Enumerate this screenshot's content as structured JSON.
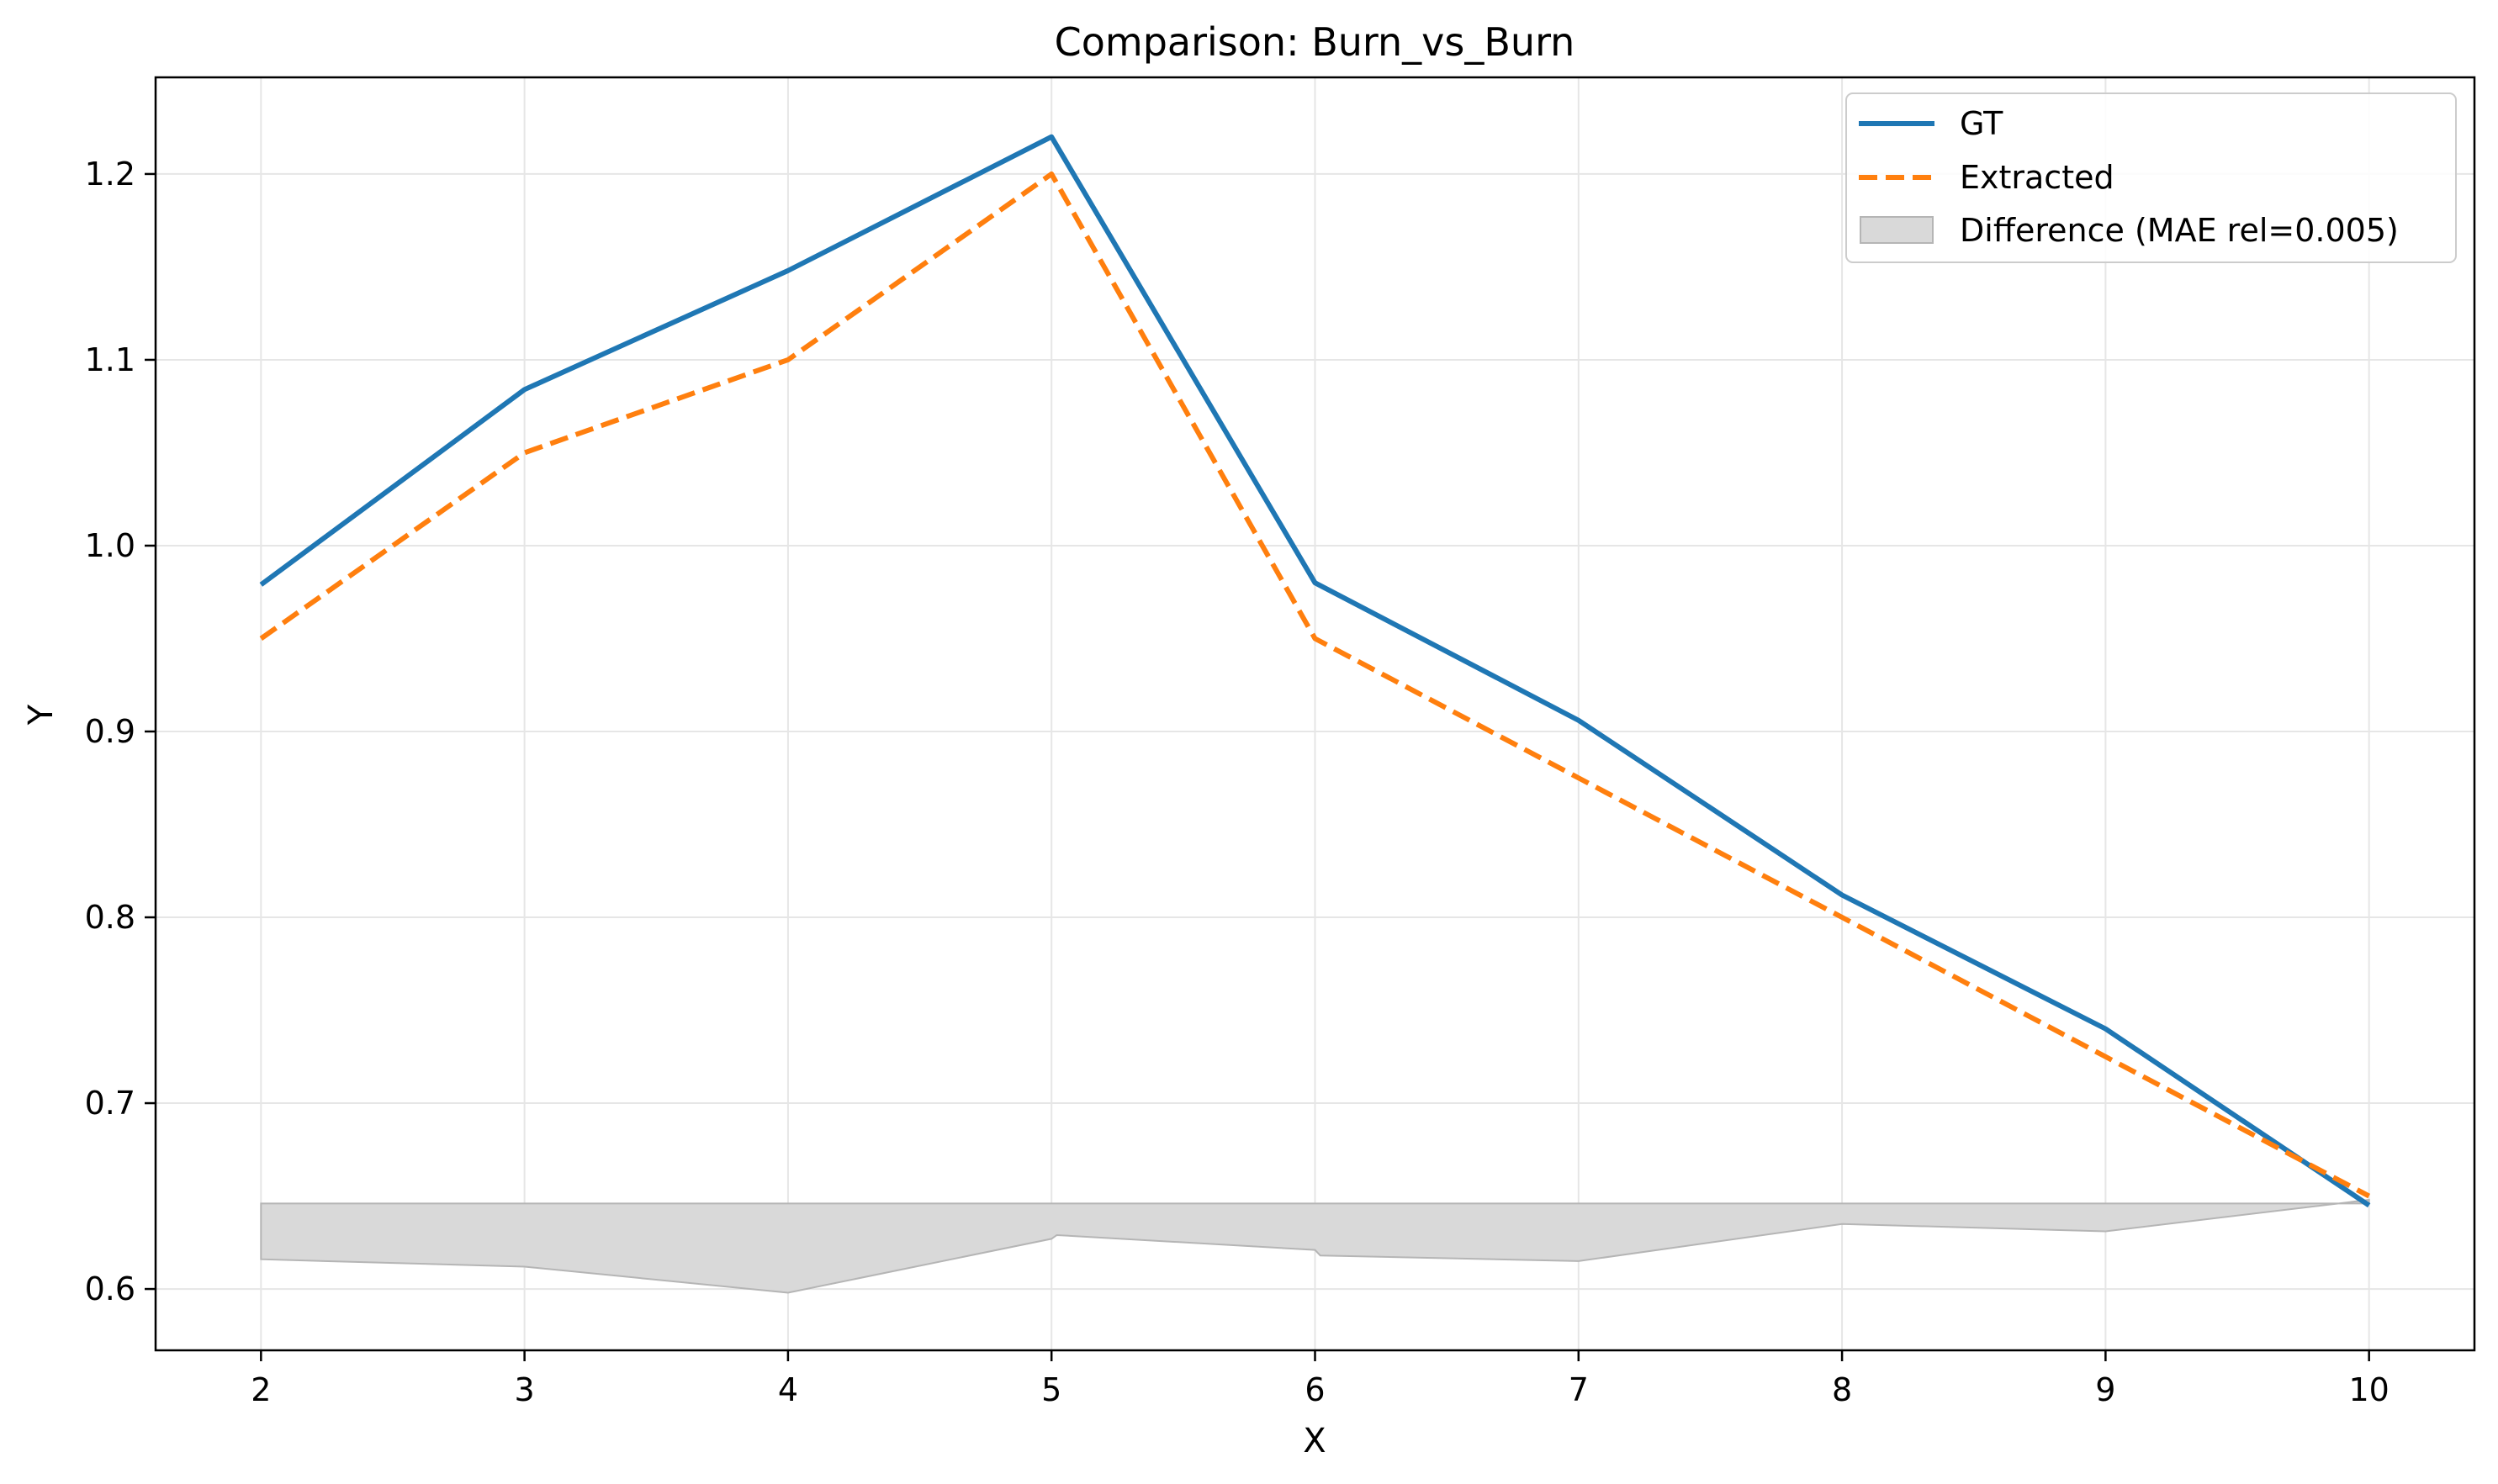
{
  "chart_data": {
    "type": "line",
    "title": "Comparison: Burn_vs_Burn",
    "xlabel": "X",
    "ylabel": "Y",
    "xlim": [
      1.6,
      10.4
    ],
    "ylim": [
      0.567,
      1.252
    ],
    "x_ticks": [
      2,
      3,
      4,
      5,
      6,
      7,
      8,
      9,
      10
    ],
    "y_ticks": [
      0.6,
      0.7,
      0.8,
      0.9,
      1.0,
      1.1,
      1.2
    ],
    "y_tick_labels": [
      "0.6",
      "0.7",
      "0.8",
      "0.9",
      "1.0",
      "1.1",
      "1.2"
    ],
    "grid": true,
    "legend_position": "top-right",
    "colors": {
      "gt": "#1f77b4",
      "extracted": "#ff7f0e",
      "difference": "#d9d9d9",
      "difference_edge": "#b5b5b5"
    },
    "series": [
      {
        "name": "GT",
        "style": "solid",
        "x": [
          2,
          3,
          4,
          5,
          6,
          7,
          8,
          9,
          10
        ],
        "y": [
          0.979,
          1.084,
          1.148,
          1.22,
          0.98,
          0.906,
          0.812,
          0.74,
          0.645
        ]
      },
      {
        "name": "Extracted",
        "style": "dashed",
        "x": [
          2,
          3,
          4,
          5,
          6,
          7,
          8,
          9,
          10
        ],
        "y": [
          0.95,
          1.05,
          1.1,
          1.2,
          0.95,
          0.875,
          0.8,
          0.725,
          0.65
        ]
      }
    ],
    "difference_band": {
      "name": "Difference (MAE rel=0.005)",
      "baseline": 0.646,
      "x": [
        2,
        3,
        4,
        5,
        5.02,
        6,
        6.02,
        7,
        8,
        9,
        10
      ],
      "lower": [
        0.616,
        0.612,
        0.598,
        0.627,
        0.629,
        0.621,
        0.618,
        0.615,
        0.635,
        0.631,
        0.648
      ]
    }
  }
}
